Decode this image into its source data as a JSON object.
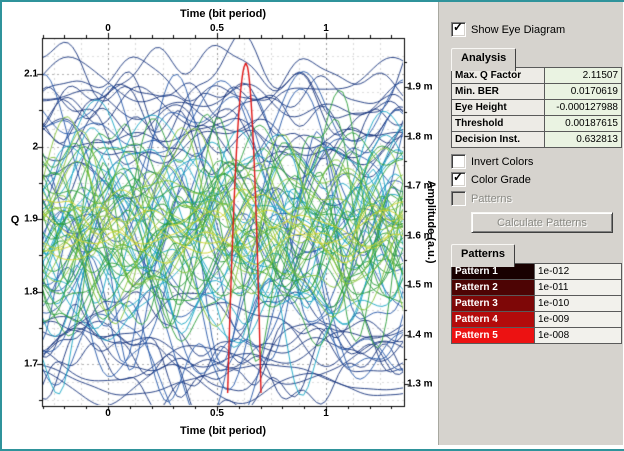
{
  "window": {
    "border_color": "#2f939b",
    "panel_bg": "#d6d3ce"
  },
  "plot": {
    "top_axis_title": "Time (bit period)",
    "bottom_axis_title": "Time (bit period)",
    "left_axis_title": "Q",
    "right_axis_title": "Amplitude (a.u.)"
  },
  "chart_data": {
    "type": "line",
    "subtype": "eye-diagram",
    "title": "",
    "x_axis": {
      "label": "Time (bit period)",
      "range": [
        -0.303,
        1.358
      ],
      "ticks": [
        "0",
        "0.5",
        "1"
      ],
      "tick_values": [
        0,
        0.5,
        1
      ]
    },
    "y_axis_left": {
      "label": "Q",
      "range": [
        1.642,
        2.15
      ],
      "ticks": [
        "2.1",
        "2",
        "1.9",
        "1.8",
        "1.7"
      ],
      "tick_values": [
        2.1,
        2.0,
        1.9,
        1.8,
        1.7
      ]
    },
    "y_axis_right": {
      "label": "Amplitude (a.u.)",
      "ticks": [
        "1.9 m",
        "1.8 m",
        "1.7 m",
        "1.6 m",
        "1.5 m",
        "1.4 m",
        "1.3 m"
      ],
      "tick_values": [
        1.9,
        1.8,
        1.7,
        1.6,
        1.5,
        1.4,
        1.3
      ],
      "unit": "m"
    },
    "grid": {
      "dashed": true,
      "x_step": 0.125,
      "q_step": 0.025
    },
    "q_curve": {
      "name": "Q factor vs decision instant",
      "color": "#e01717",
      "peak_x": 0.632813,
      "peak_q": 2.11507,
      "base_q": 1.66,
      "half_width": 0.075
    },
    "eye_traces": {
      "seed": 11,
      "samples_step": 0.02,
      "groups": [
        {
          "name": "outer-top-navy",
          "color": "#16337c",
          "count": 14,
          "center": [
            1.97,
            2.09
          ],
          "amp": [
            0.02,
            0.07
          ],
          "freq": [
            0.5,
            1.6
          ]
        },
        {
          "name": "outer-bottom-navy",
          "color": "#16337c",
          "count": 12,
          "center": [
            1.67,
            1.77
          ],
          "amp": [
            0.02,
            0.06
          ],
          "freq": [
            0.5,
            1.6
          ]
        },
        {
          "name": "blue-wide",
          "color": "#2456a8",
          "count": 16,
          "center": [
            1.74,
            2.03
          ],
          "amp": [
            0.06,
            0.16
          ],
          "freq": [
            0.6,
            2.2
          ]
        },
        {
          "name": "cyan",
          "color": "#17a5c4",
          "count": 16,
          "center": [
            1.78,
            1.99
          ],
          "amp": [
            0.04,
            0.12
          ],
          "freq": [
            0.6,
            2.4
          ]
        },
        {
          "name": "green",
          "color": "#2c9e3c",
          "count": 20,
          "center": [
            1.8,
            1.97
          ],
          "amp": [
            0.04,
            0.11
          ],
          "freq": [
            0.6,
            2.6
          ]
        },
        {
          "name": "lime",
          "color": "#85c33c",
          "count": 12,
          "center": [
            1.83,
            1.95
          ],
          "amp": [
            0.03,
            0.08
          ],
          "freq": [
            0.8,
            2.6
          ]
        },
        {
          "name": "yellow",
          "color": "#cfd42c",
          "count": 5,
          "center": [
            1.86,
            1.93
          ],
          "amp": [
            0.02,
            0.05
          ],
          "freq": [
            0.8,
            2.4
          ]
        }
      ]
    }
  },
  "controls": {
    "show_eye_diagram": {
      "label": "Show Eye Diagram",
      "checked": true,
      "disabled": false
    },
    "invert_colors": {
      "label": "Invert Colors",
      "checked": false,
      "disabled": false
    },
    "color_grade": {
      "label": "Color Grade",
      "checked": true,
      "disabled": false
    },
    "patterns_checkbox": {
      "label": "Patterns",
      "checked": false,
      "disabled": true
    },
    "calculate_patterns": {
      "label": "Calculate Patterns",
      "disabled": true
    }
  },
  "analysis": {
    "tab_label": "Analysis",
    "rows": [
      {
        "label": "Max. Q Factor",
        "value": "2.11507"
      },
      {
        "label": "Min. BER",
        "value": "0.0170619"
      },
      {
        "label": "Eye Height",
        "value": "-0.000127988"
      },
      {
        "label": "Threshold",
        "value": "0.00187615"
      },
      {
        "label": "Decision Inst.",
        "value": "0.632813"
      }
    ]
  },
  "patterns": {
    "tab_label": "Patterns",
    "rows": [
      {
        "label": "Pattern 1",
        "value": "1e-012",
        "color": "#180000"
      },
      {
        "label": "Pattern 2",
        "value": "1e-011",
        "color": "#4d0404"
      },
      {
        "label": "Pattern 3",
        "value": "1e-010",
        "color": "#7e0707"
      },
      {
        "label": "Pattern 4",
        "value": "1e-009",
        "color": "#b30b0b"
      },
      {
        "label": "Pattern 5",
        "value": "1e-008",
        "color": "#ec1212"
      }
    ]
  }
}
